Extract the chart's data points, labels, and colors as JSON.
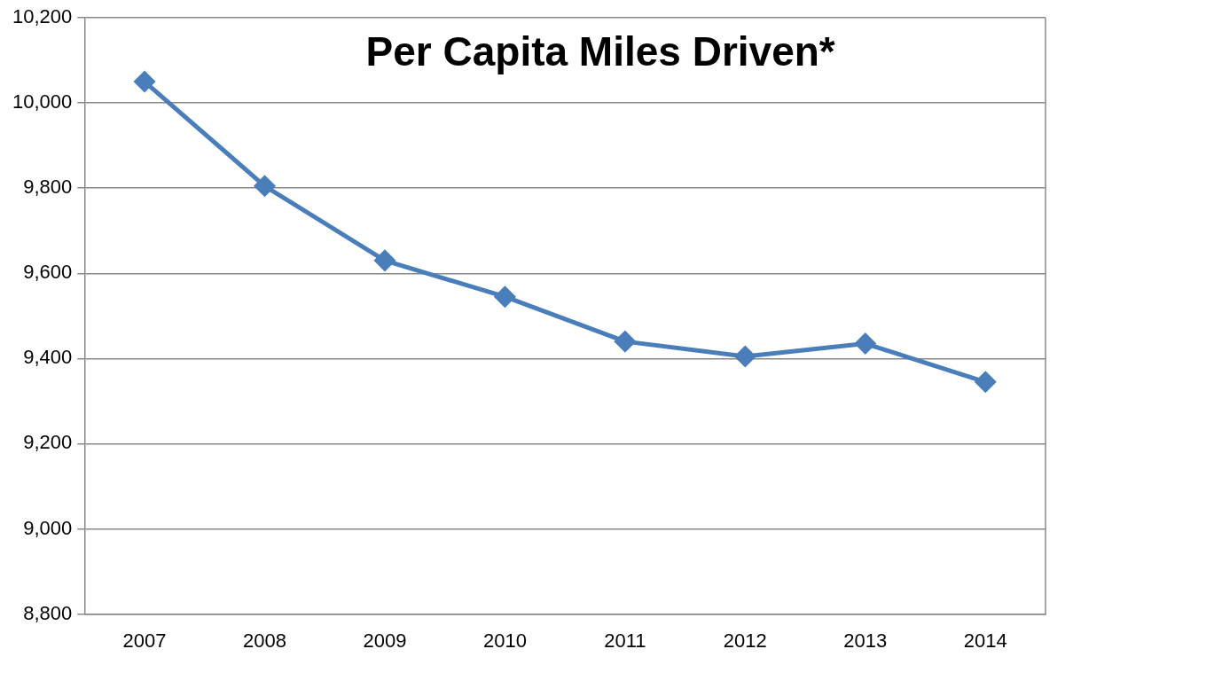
{
  "chart_data": {
    "type": "line",
    "title": "Per Capita Miles Driven*",
    "categories": [
      "2007",
      "2008",
      "2009",
      "2010",
      "2011",
      "2012",
      "2013",
      "2014"
    ],
    "series": [
      {
        "color": "#4a7ebb",
        "values": [
          10050,
          9805,
          9630,
          9545,
          9440,
          9405,
          9435,
          9345
        ]
      }
    ],
    "ylim": [
      8800,
      10200
    ],
    "yticks": [
      {
        "value": 8800,
        "label": "8,800"
      },
      {
        "value": 9000,
        "label": "9,000"
      },
      {
        "value": 9200,
        "label": "9,200"
      },
      {
        "value": 9400,
        "label": "9,400"
      },
      {
        "value": 9600,
        "label": "9,600"
      },
      {
        "value": 9800,
        "label": "9,800"
      },
      {
        "value": 10000,
        "label": "10,000"
      },
      {
        "value": 10200,
        "label": "10,200"
      }
    ],
    "grid": "y",
    "legend": false,
    "marker": "diamond",
    "line_style": "solid"
  }
}
